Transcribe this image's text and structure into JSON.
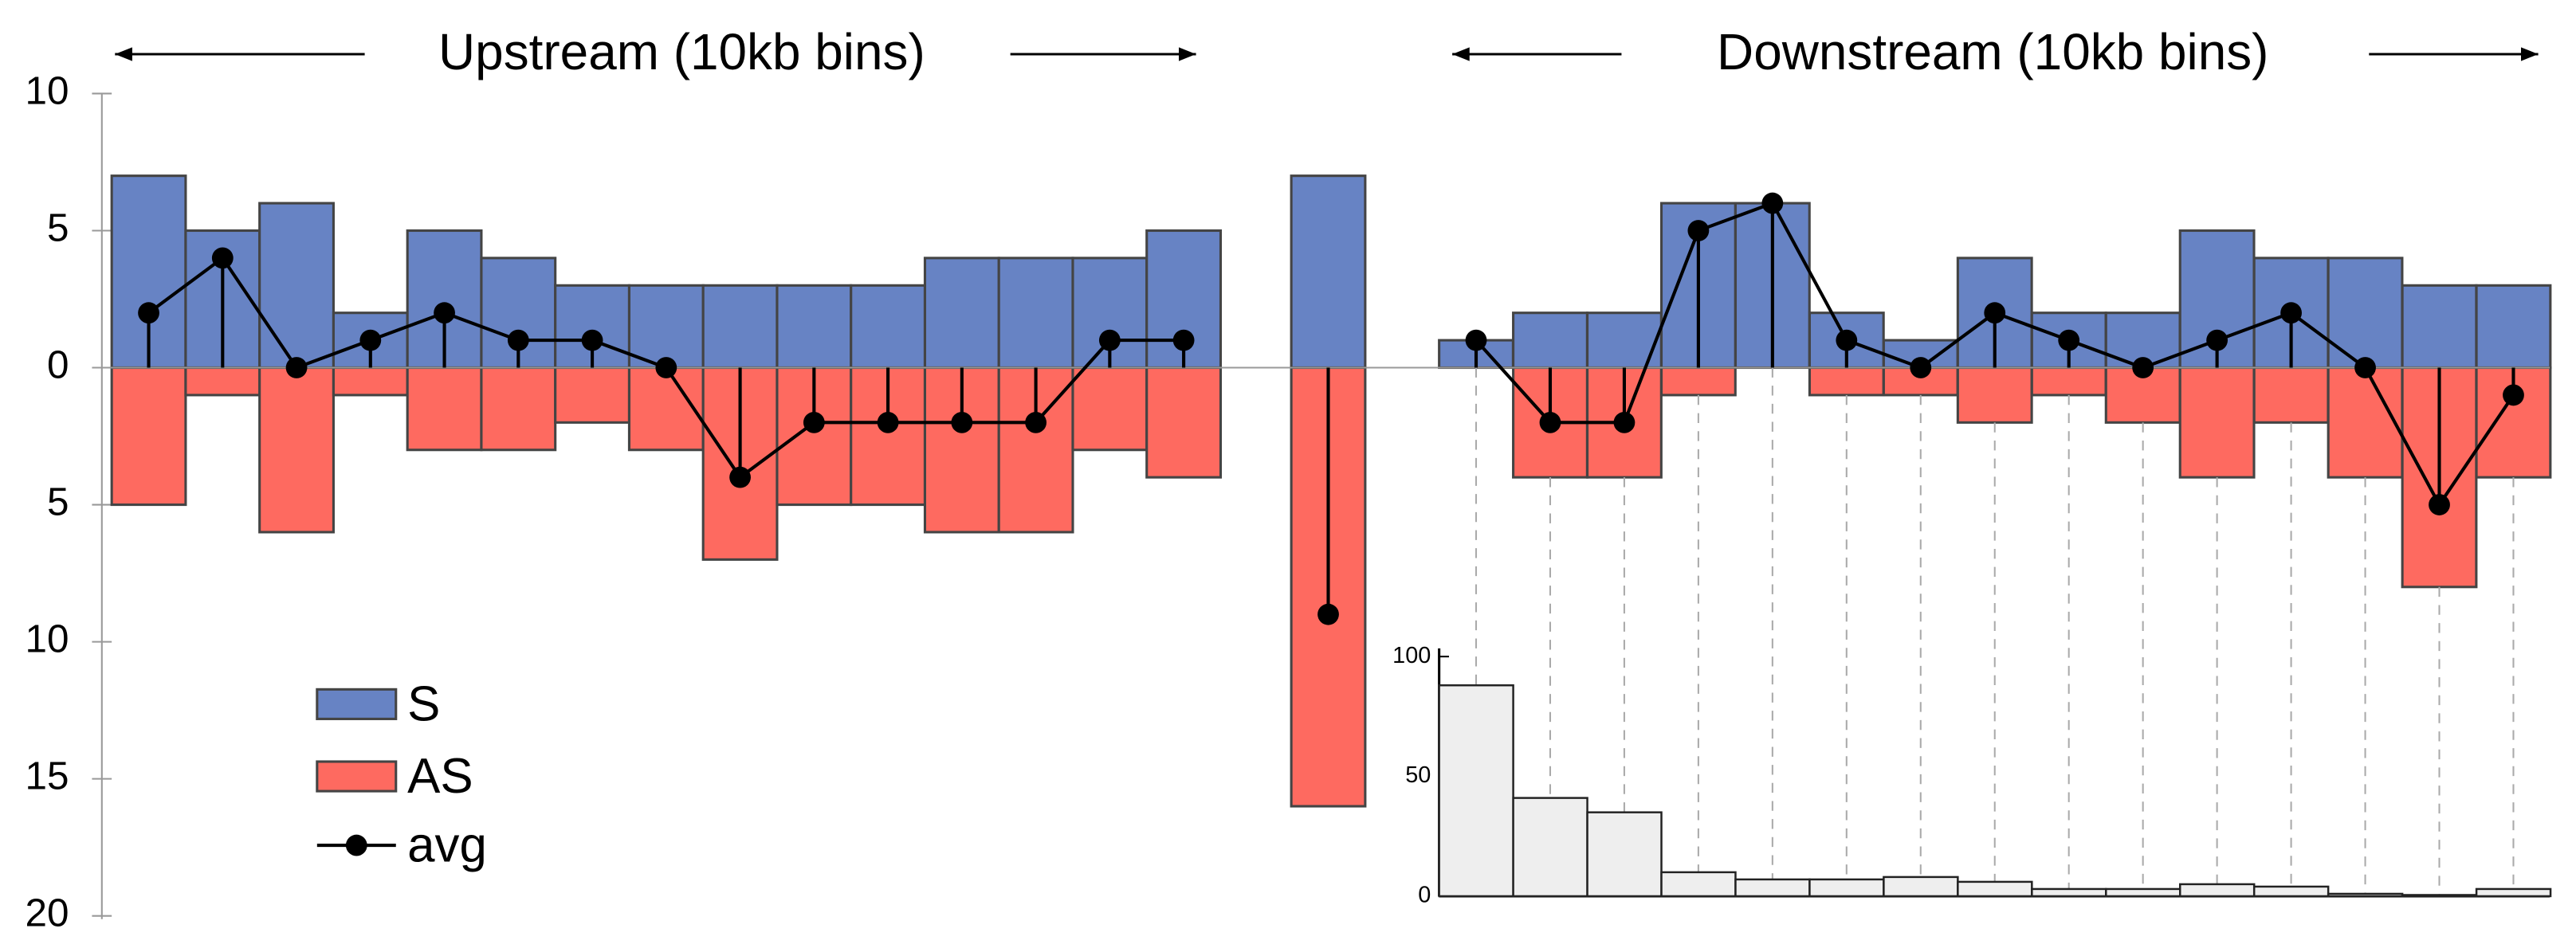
{
  "chart_data": [
    {
      "type": "bar",
      "annotations": [
        "Upstream (10kb bins)",
        "Downstream (10kb bins)"
      ],
      "ylim": [
        -20,
        10
      ],
      "yticks": [
        10,
        5,
        0,
        {
          "value": -5,
          "label": "5"
        },
        {
          "value": -10,
          "label": "10"
        },
        {
          "value": -15,
          "label": "15"
        },
        {
          "value": -20,
          "label": "20"
        }
      ],
      "series": [
        {
          "name": "S",
          "color": "#6783c4",
          "values": [
            7,
            5,
            6,
            2,
            5,
            4,
            3,
            3,
            3,
            3,
            3,
            4,
            4,
            4,
            5,
            7,
            1,
            2,
            2,
            6,
            6,
            2,
            1,
            4,
            2,
            2,
            5,
            4,
            4,
            3,
            3
          ]
        },
        {
          "name": "AS",
          "color": "#fe6a60",
          "values": [
            -5,
            -1,
            -6,
            -1,
            -3,
            -3,
            -2,
            -3,
            -7,
            -5,
            -5,
            -6,
            -6,
            -3,
            -4,
            -16,
            0,
            -4,
            -4,
            -1,
            0,
            -1,
            -1,
            -2,
            -1,
            -2,
            -4,
            -2,
            -4,
            -8,
            -4
          ]
        },
        {
          "name": "avg",
          "type": "line",
          "color": "#000000",
          "values": [
            2,
            4,
            0,
            1,
            2,
            1,
            1,
            0,
            -4,
            -2,
            -2,
            -2,
            -2,
            1,
            1,
            -9,
            1,
            -2,
            -2,
            5,
            6,
            1,
            0,
            2,
            1,
            0,
            1,
            2,
            0,
            -5,
            -1
          ]
        }
      ]
    },
    {
      "type": "bar",
      "color": "#eeeeee",
      "values": [
        88,
        41,
        35,
        10,
        7,
        7,
        8,
        6,
        3,
        3,
        5,
        4,
        1,
        0.5,
        3
      ],
      "ylim": [
        0,
        100
      ],
      "yticks": [
        0,
        50,
        100
      ]
    }
  ]
}
